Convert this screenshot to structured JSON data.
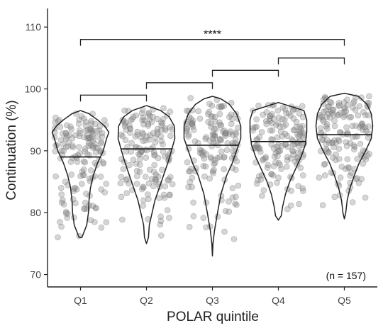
{
  "chart_data": {
    "type": "violin",
    "xlabel": "POLAR quintile",
    "ylabel": "Continuation (%)",
    "categories": [
      "Q1",
      "Q2",
      "Q3",
      "Q4",
      "Q5"
    ],
    "ylim": [
      68,
      113
    ],
    "yticks": [
      70,
      80,
      90,
      100,
      110
    ],
    "annotation": "(n =  157)",
    "grid": false,
    "point_color": "#888888",
    "outline_color": "#222222",
    "violins": [
      {
        "category": "Q1",
        "median": 89.0,
        "min": 76.0,
        "max": 96.5,
        "density": [
          [
            76,
            0.05
          ],
          [
            78,
            0.22
          ],
          [
            80,
            0.28
          ],
          [
            82,
            0.3
          ],
          [
            84,
            0.35
          ],
          [
            86,
            0.45
          ],
          [
            88,
            0.6
          ],
          [
            90,
            0.8
          ],
          [
            92,
            0.92
          ],
          [
            93,
            1.0
          ],
          [
            94,
            0.85
          ],
          [
            95,
            0.6
          ],
          [
            96,
            0.3
          ],
          [
            96.5,
            0.0
          ]
        ]
      },
      {
        "category": "Q2",
        "median": 90.3,
        "min": 75.0,
        "max": 97.3,
        "density": [
          [
            75,
            0.0
          ],
          [
            76,
            0.07
          ],
          [
            78,
            0.1
          ],
          [
            80,
            0.2
          ],
          [
            82,
            0.3
          ],
          [
            84,
            0.45
          ],
          [
            86,
            0.6
          ],
          [
            88,
            0.75
          ],
          [
            90,
            0.88
          ],
          [
            92,
            1.0
          ],
          [
            94,
            0.98
          ],
          [
            95.5,
            0.8
          ],
          [
            96.5,
            0.5
          ],
          [
            97.3,
            0.0
          ]
        ]
      },
      {
        "category": "Q3",
        "median": 90.9,
        "min": 73.0,
        "max": 98.8,
        "density": [
          [
            73,
            0.0
          ],
          [
            75,
            0.02
          ],
          [
            77,
            0.07
          ],
          [
            80,
            0.18
          ],
          [
            83,
            0.3
          ],
          [
            86,
            0.5
          ],
          [
            88,
            0.7
          ],
          [
            90,
            0.85
          ],
          [
            92,
            1.0
          ],
          [
            94,
            1.0
          ],
          [
            96,
            0.85
          ],
          [
            97.5,
            0.6
          ],
          [
            98.4,
            0.3
          ],
          [
            98.8,
            0.0
          ]
        ]
      },
      {
        "category": "Q4",
        "median": 91.5,
        "min": 78.8,
        "max": 97.8,
        "density": [
          [
            78.8,
            0.0
          ],
          [
            79.5,
            0.1
          ],
          [
            81,
            0.15
          ],
          [
            83,
            0.25
          ],
          [
            85,
            0.4
          ],
          [
            87,
            0.6
          ],
          [
            89,
            0.8
          ],
          [
            91,
            0.95
          ],
          [
            93,
            1.0
          ],
          [
            95,
            1.0
          ],
          [
            96.5,
            0.9
          ],
          [
            97.8,
            0.0
          ]
        ]
      },
      {
        "category": "Q5",
        "median": 92.6,
        "min": 79.0,
        "max": 99.3,
        "density": [
          [
            79,
            0.0
          ],
          [
            80,
            0.05
          ],
          [
            82,
            0.1
          ],
          [
            84,
            0.2
          ],
          [
            86,
            0.35
          ],
          [
            88,
            0.52
          ],
          [
            90,
            0.75
          ],
          [
            92,
            0.95
          ],
          [
            94,
            1.0
          ],
          [
            96,
            0.95
          ],
          [
            97.5,
            0.8
          ],
          [
            98.8,
            0.5
          ],
          [
            99.3,
            0.0
          ]
        ]
      }
    ],
    "brackets": [
      {
        "from": "Q1",
        "to": "Q5",
        "y": 108.0,
        "label": "****"
      },
      {
        "from": "Q4",
        "to": "Q5",
        "y": 105.0,
        "label": ""
      },
      {
        "from": "Q3",
        "to": "Q4",
        "y": 103.0,
        "label": ""
      },
      {
        "from": "Q2",
        "to": "Q3",
        "y": 101.0,
        "label": ""
      },
      {
        "from": "Q1",
        "to": "Q2",
        "y": 99.0,
        "label": ""
      }
    ]
  }
}
